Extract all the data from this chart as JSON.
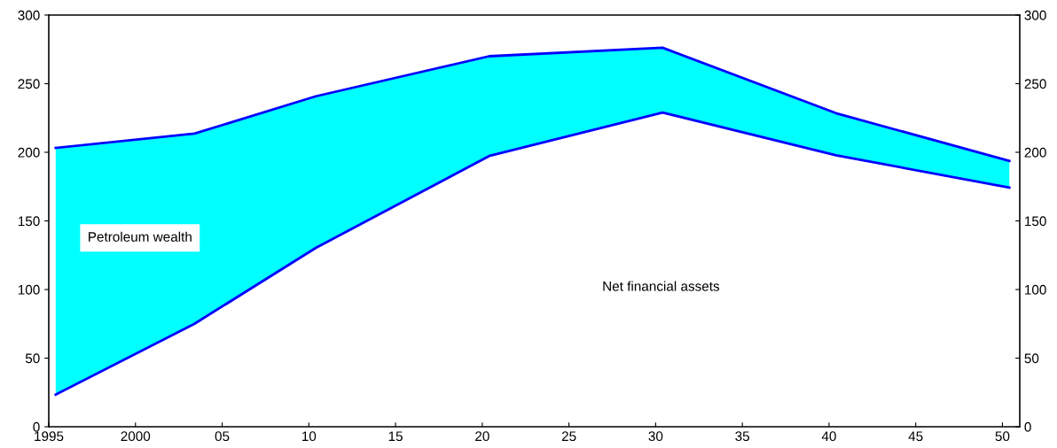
{
  "chart_data": {
    "type": "area",
    "stacked": true,
    "x": [
      1995.4,
      2003.4,
      2010.4,
      2020.4,
      2030.4,
      2040.4,
      2050.4
    ],
    "series": [
      {
        "name": "Net financial assets",
        "color": "#ffffff",
        "values": [
          23.4,
          75,
          130.3,
          197.3,
          229,
          197.8,
          174.3
        ]
      },
      {
        "name": "Petroleum wealth",
        "color": "#00ffff",
        "values": [
          179.8,
          138.6,
          110.5,
          72.7,
          47.2,
          30.7,
          19.4
        ]
      }
    ],
    "xlim": [
      1995,
      2051
    ],
    "xticks": [
      1995,
      2000,
      {
        "value": 2005,
        "label": "05"
      },
      {
        "value": 2010,
        "label": "10"
      },
      {
        "value": 2015,
        "label": "15"
      },
      {
        "value": 2020,
        "label": "20"
      },
      {
        "value": 2025,
        "label": "25"
      },
      {
        "value": 2030,
        "label": "30"
      },
      {
        "value": 2035,
        "label": "35"
      },
      {
        "value": 2040,
        "label": "40"
      },
      {
        "value": 2045,
        "label": "45"
      },
      {
        "value": 2050,
        "label": "50"
      }
    ],
    "ylim": [
      0,
      300
    ],
    "yticks": [
      0,
      50,
      100,
      150,
      200,
      250,
      300
    ],
    "y2lim": [
      0,
      300
    ],
    "y2ticks": [
      0,
      50,
      100,
      150,
      200,
      250,
      300
    ],
    "grid": false,
    "legend": false
  }
}
